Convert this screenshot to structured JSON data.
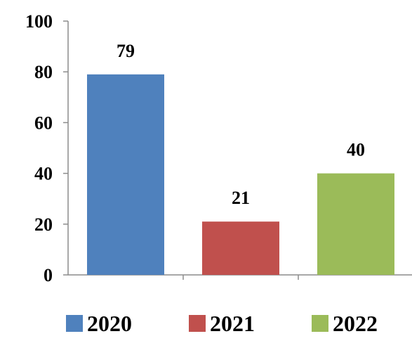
{
  "chart_data": {
    "type": "bar",
    "categories": [
      "2020",
      "2021",
      "2022"
    ],
    "values": [
      79,
      21,
      40
    ],
    "colors": [
      "#4F81BD",
      "#C0504D",
      "#9BBB59"
    ],
    "ylim": [
      0,
      100
    ],
    "yticks": [
      0,
      20,
      40,
      60,
      80,
      100
    ],
    "data_labels": [
      "79",
      "21",
      "40"
    ],
    "legend": {
      "placement": "bottom",
      "entries": [
        {
          "label": "2020",
          "color": "#4F81BD"
        },
        {
          "label": "2021",
          "color": "#C0504D"
        },
        {
          "label": "2022",
          "color": "#9BBB59"
        }
      ]
    },
    "grid": false,
    "title": "",
    "xlabel": "",
    "ylabel": ""
  }
}
